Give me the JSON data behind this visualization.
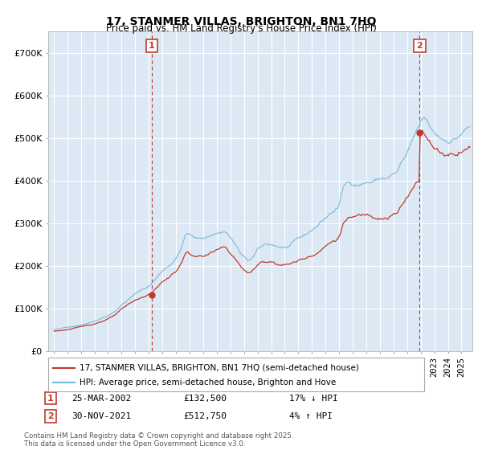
{
  "title": "17, STANMER VILLAS, BRIGHTON, BN1 7HQ",
  "subtitle": "Price paid vs. HM Land Registry's House Price Index (HPI)",
  "legend_line1": "17, STANMER VILLAS, BRIGHTON, BN1 7HQ (semi-detached house)",
  "legend_line2": "HPI: Average price, semi-detached house, Brighton and Hove",
  "annotation1_label": "1",
  "annotation1_date": "25-MAR-2002",
  "annotation1_price": "£132,500",
  "annotation1_hpi": "17% ↓ HPI",
  "annotation2_label": "2",
  "annotation2_date": "30-NOV-2021",
  "annotation2_price": "£512,750",
  "annotation2_hpi": "4% ↑ HPI",
  "footnote": "Contains HM Land Registry data © Crown copyright and database right 2025.\nThis data is licensed under the Open Government Licence v3.0.",
  "hpi_color": "#7ab8d9",
  "price_color": "#c0392b",
  "marker_color": "#c0392b",
  "annotation_box_color": "#c0392b",
  "bg_color": "#dce9f5",
  "ylim": [
    0,
    750000
  ],
  "yticks": [
    0,
    100000,
    200000,
    300000,
    400000,
    500000,
    600000,
    700000
  ],
  "xlim_start": 1994.6,
  "xlim_end": 2025.8,
  "vline1_x": 2002.22,
  "vline2_x": 2021.92,
  "sale1_x": 2002.22,
  "sale1_y": 132500,
  "sale2_x": 2021.92,
  "sale2_y": 512750
}
